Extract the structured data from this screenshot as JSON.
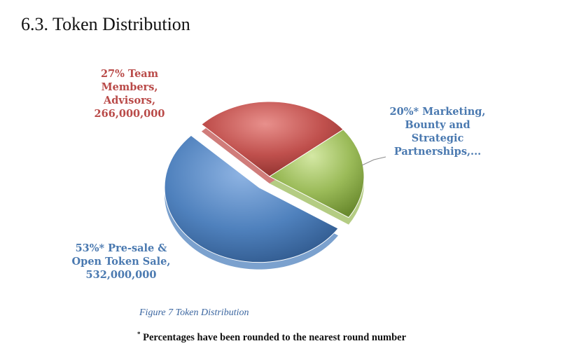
{
  "heading": "6.3. Token Distribution",
  "caption": "Figure 7 Token Distribution",
  "footnote": {
    "mark": "*",
    "text": " Percentages have been rounded to the nearest round number"
  },
  "chart_data": {
    "type": "pie",
    "exploded": "Pre-sale & Open Token Sale",
    "slices": [
      {
        "key": "team",
        "value": 27,
        "amount": 266000000,
        "label_lines": [
          "27% Team",
          "Members,",
          "Advisors,",
          "266,000,000"
        ],
        "color": "#c0504d"
      },
      {
        "key": "marketing",
        "value": 20,
        "label_lines": [
          "20%* Marketing,",
          "Bounty and",
          "Strategic",
          "Partnerships,..."
        ],
        "color": "#9bbb59"
      },
      {
        "key": "presale",
        "value": 53,
        "amount": 532000000,
        "label_lines": [
          "53%* Pre-sale &",
          "Open Token Sale,",
          "532,000,000"
        ],
        "color": "#4f81bd"
      }
    ],
    "label_colors": {
      "team": "#b94a48",
      "marketing": "#4a79b0",
      "presale": "#4a79b0"
    }
  }
}
